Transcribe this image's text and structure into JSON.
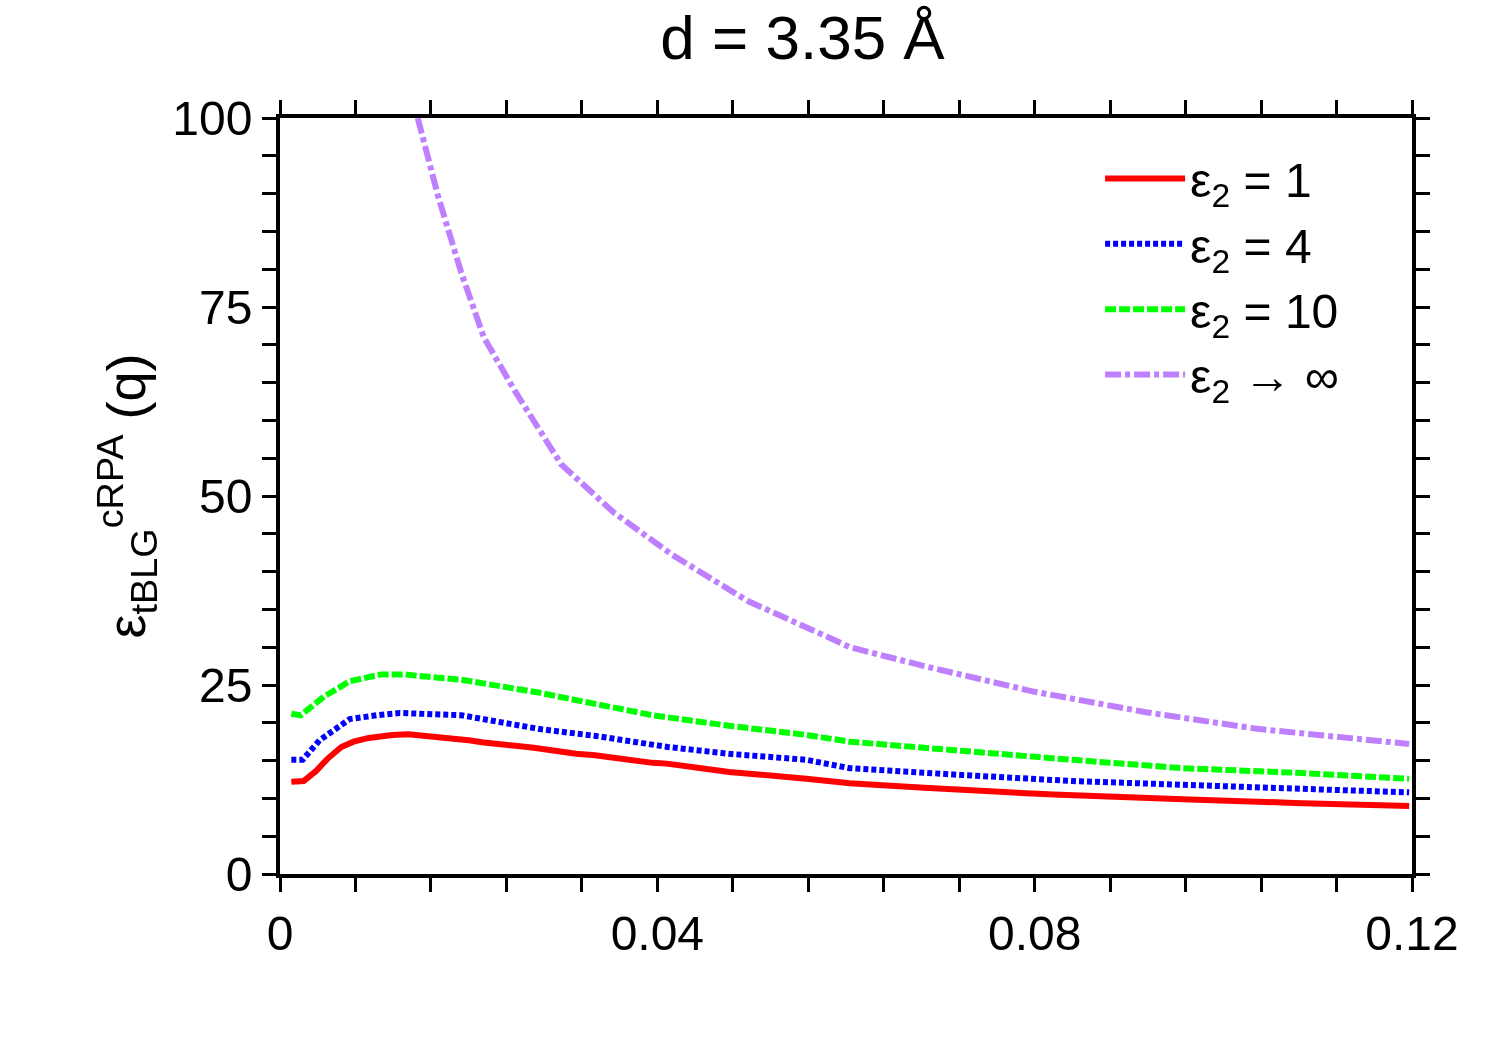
{
  "chart_data": {
    "type": "line",
    "title": "d = 3.35 Å",
    "ylabel": "ε$_{tBLG}$$^{cRPA}$ (q)",
    "xlim": [
      0,
      0.12
    ],
    "ylim": [
      0,
      100
    ],
    "xticks": [
      0,
      {
        "value": 0.008,
        "label": null
      },
      {
        "value": 0.016,
        "label": null
      },
      {
        "value": 0.024,
        "label": null
      },
      {
        "value": 0.032,
        "label": null
      },
      0.04,
      {
        "value": 0.048,
        "label": null
      },
      {
        "value": 0.056,
        "label": null
      },
      {
        "value": 0.064,
        "label": null
      },
      {
        "value": 0.072,
        "label": null
      },
      0.08,
      {
        "value": 0.088,
        "label": null
      },
      {
        "value": 0.096,
        "label": null
      },
      {
        "value": 0.104,
        "label": null
      },
      {
        "value": 0.112,
        "label": null
      },
      0.12
    ],
    "yticks": [
      0,
      {
        "value": 5,
        "label": null
      },
      {
        "value": 10,
        "label": null
      },
      {
        "value": 15,
        "label": null
      },
      {
        "value": 20,
        "label": null
      },
      25,
      {
        "value": 30,
        "label": null
      },
      {
        "value": 35,
        "label": null
      },
      {
        "value": 40,
        "label": null
      },
      {
        "value": 45,
        "label": null
      },
      50,
      {
        "value": 55,
        "label": null
      },
      {
        "value": 60,
        "label": null
      },
      {
        "value": 65,
        "label": null
      },
      {
        "value": 70,
        "label": null
      },
      75,
      {
        "value": 80,
        "label": null
      },
      {
        "value": 85,
        "label": null
      },
      {
        "value": 90,
        "label": null
      },
      {
        "value": 95,
        "label": null
      },
      100
    ],
    "grid": false,
    "legend": "top right",
    "marker": "none",
    "series": [
      {
        "name": "ε$_{2}$ = 1",
        "color": "#ff0000",
        "line_style": "solid",
        "x": [
          0.0012,
          0.0025,
          0.0038,
          0.005,
          0.0065,
          0.0078,
          0.0094,
          0.0119,
          0.0136,
          0.02,
          0.0216,
          0.0269,
          0.0314,
          0.0334,
          0.0395,
          0.041,
          0.0476,
          0.0558,
          0.0604,
          0.0683,
          0.082,
          0.0957,
          0.1075,
          0.1197
        ],
        "values": [
          12.2,
          12.3,
          13.6,
          15.2,
          16.8,
          17.5,
          18.0,
          18.4,
          18.5,
          17.7,
          17.4,
          16.7,
          15.9,
          15.7,
          14.7,
          14.6,
          13.5,
          12.6,
          12.0,
          11.4,
          10.5,
          9.9,
          9.4,
          9.0
        ]
      },
      {
        "name": "ε$_{2}$ = 4",
        "color": "#0000ff",
        "line_style": "dotted",
        "x": [
          0.0012,
          0.0024,
          0.0042,
          0.0074,
          0.0103,
          0.0127,
          0.0192,
          0.0274,
          0.0338,
          0.0411,
          0.0476,
          0.0558,
          0.0604,
          0.0722,
          0.084,
          0.0957,
          0.1075,
          0.1197
        ],
        "values": [
          15.1,
          15.1,
          17.7,
          20.5,
          21.0,
          21.3,
          21.0,
          19.2,
          18.2,
          16.8,
          15.9,
          15.1,
          14.0,
          13.1,
          12.3,
          11.8,
          11.3,
          10.8
        ]
      },
      {
        "name": "ε$_{2}$ = 10",
        "color": "#00ff00",
        "line_style": "dashed",
        "x": [
          0.0012,
          0.0022,
          0.0047,
          0.0074,
          0.0107,
          0.0131,
          0.0192,
          0.0274,
          0.0334,
          0.0395,
          0.0476,
          0.0558,
          0.0604,
          0.0722,
          0.084,
          0.0957,
          0.1075,
          0.1197
        ],
        "values": [
          21.2,
          21.0,
          23.5,
          25.5,
          26.4,
          26.4,
          25.7,
          24.0,
          22.5,
          21.0,
          19.6,
          18.4,
          17.5,
          16.3,
          15.1,
          14.0,
          13.4,
          12.6
        ]
      },
      {
        "name": "ε$_{2}$ → ∞",
        "color": "#bf80ff",
        "line_style": "dashdot",
        "x": [
          0.0146,
          0.01675,
          0.0192,
          0.0216,
          0.0249,
          0.0298,
          0.0354,
          0.0416,
          0.0496,
          0.0578,
          0.0604,
          0.0683,
          0.08,
          0.0918,
          0.1036,
          0.1197
        ],
        "values": [
          100,
          89.7,
          79.6,
          71.0,
          63.9,
          54.2,
          47.8,
          42.2,
          36.1,
          31.5,
          30.0,
          27.5,
          24.1,
          21.4,
          19.2,
          17.2
        ]
      }
    ]
  }
}
